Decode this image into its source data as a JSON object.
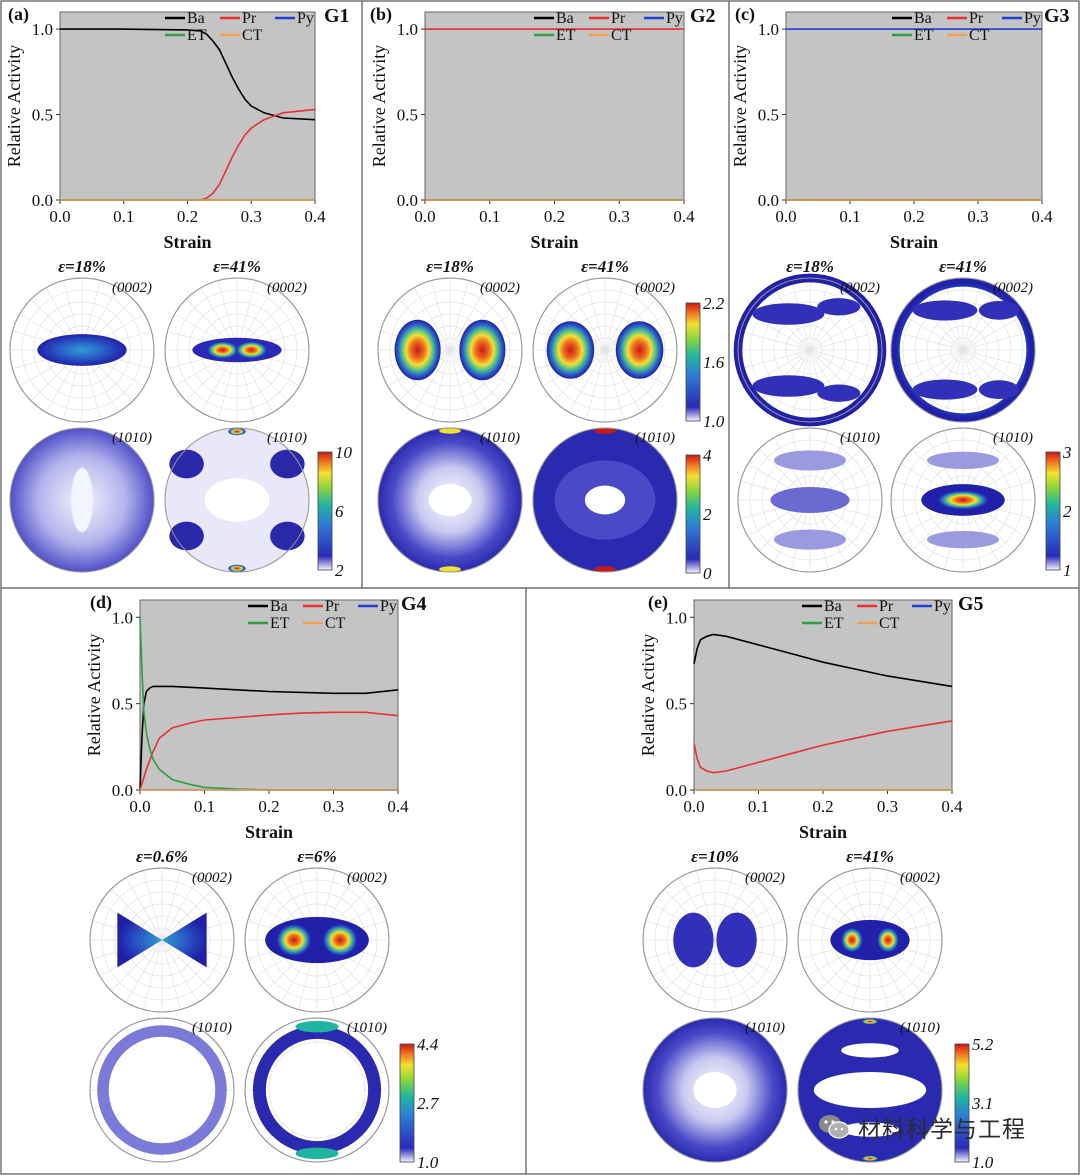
{
  "chart_data": [
    {
      "panel": "(a)",
      "grain": "G1",
      "type": "line",
      "xlabel": "Strain",
      "ylabel": "Relative Activity",
      "xlim": [
        0,
        0.4
      ],
      "ylim": [
        0,
        1.1
      ],
      "xticks": [
        "0.0",
        "0.1",
        "0.2",
        "0.3",
        "0.4"
      ],
      "yticks": [
        "0.0",
        "0.5",
        "1.0"
      ],
      "legend": [
        "Ba",
        "Pr",
        "Py",
        "ET",
        "CT"
      ],
      "legend_position": "top-right",
      "series": [
        {
          "name": "Ba",
          "color": "#000000",
          "x": [
            0,
            0.1,
            0.2,
            0.22,
            0.23,
            0.24,
            0.25,
            0.26,
            0.27,
            0.28,
            0.29,
            0.3,
            0.32,
            0.35,
            0.4
          ],
          "y": [
            1,
            1,
            0.995,
            0.99,
            0.97,
            0.93,
            0.88,
            0.8,
            0.72,
            0.65,
            0.59,
            0.55,
            0.51,
            0.48,
            0.47
          ]
        },
        {
          "name": "Pr",
          "color": "#e83030",
          "x": [
            0,
            0.1,
            0.2,
            0.22,
            0.23,
            0.24,
            0.25,
            0.26,
            0.27,
            0.28,
            0.29,
            0.3,
            0.32,
            0.35,
            0.4
          ],
          "y": [
            0,
            0,
            0,
            0,
            0.01,
            0.04,
            0.09,
            0.17,
            0.25,
            0.32,
            0.38,
            0.42,
            0.47,
            0.51,
            0.53
          ]
        },
        {
          "name": "Py",
          "color": "#1f3fd6",
          "x": [
            0,
            0.4
          ],
          "y": [
            0,
            0
          ]
        },
        {
          "name": "ET",
          "color": "#2e9e3e",
          "x": [
            0,
            0.4
          ],
          "y": [
            0,
            0
          ]
        },
        {
          "name": "CT",
          "color": "#f0a050",
          "x": [
            0,
            0.4
          ],
          "y": [
            0,
            0
          ]
        }
      ],
      "pole_figures": {
        "strains": [
          "ε=18%",
          "ε=41%"
        ],
        "basal": "(0002)",
        "prism": "(1010)"
      },
      "colorbar": {
        "ticks": [
          "10",
          "6",
          "2"
        ]
      }
    },
    {
      "panel": "(b)",
      "grain": "G2",
      "type": "line",
      "xlabel": "Strain",
      "ylabel": "Relative Activity",
      "xlim": [
        0,
        0.4
      ],
      "ylim": [
        0,
        1.1
      ],
      "xticks": [
        "0.0",
        "0.1",
        "0.2",
        "0.3",
        "0.4"
      ],
      "yticks": [
        "0.0",
        "0.5",
        "1.0"
      ],
      "legend": [
        "Ba",
        "Pr",
        "Py",
        "ET",
        "CT"
      ],
      "legend_position": "top-right",
      "series": [
        {
          "name": "Pr",
          "color": "#e83030",
          "x": [
            0,
            0.4
          ],
          "y": [
            1,
            1
          ]
        },
        {
          "name": "Ba",
          "color": "#000000",
          "x": [
            0,
            0.4
          ],
          "y": [
            0,
            0
          ]
        },
        {
          "name": "Py",
          "color": "#1f3fd6",
          "x": [
            0,
            0.4
          ],
          "y": [
            0,
            0
          ]
        },
        {
          "name": "ET",
          "color": "#2e9e3e",
          "x": [
            0,
            0.4
          ],
          "y": [
            0,
            0
          ]
        },
        {
          "name": "CT",
          "color": "#f0a050",
          "x": [
            0,
            0.4
          ],
          "y": [
            0,
            0
          ]
        }
      ],
      "pole_figures": {
        "strains": [
          "ε=18%",
          "ε=41%"
        ],
        "basal": "(0002)",
        "prism": "(1010)"
      },
      "colorbar_top": {
        "ticks": [
          "2.2",
          "1.6",
          "1.0"
        ]
      },
      "colorbar": {
        "ticks": [
          "4",
          "2",
          "0"
        ]
      }
    },
    {
      "panel": "(c)",
      "grain": "G3",
      "type": "line",
      "xlabel": "Strain",
      "ylabel": "Relative Activity",
      "xlim": [
        0,
        0.4
      ],
      "ylim": [
        0,
        1.1
      ],
      "xticks": [
        "0.0",
        "0.1",
        "0.2",
        "0.3",
        "0.4"
      ],
      "yticks": [
        "0.0",
        "0.5",
        "1.0"
      ],
      "legend": [
        "Ba",
        "Pr",
        "Py",
        "ET",
        "CT"
      ],
      "legend_position": "top-right",
      "series": [
        {
          "name": "Py",
          "color": "#1f3fd6",
          "x": [
            0,
            0.4
          ],
          "y": [
            1,
            1
          ]
        },
        {
          "name": "Ba",
          "color": "#000000",
          "x": [
            0,
            0.4
          ],
          "y": [
            0,
            0
          ]
        },
        {
          "name": "Pr",
          "color": "#e83030",
          "x": [
            0,
            0.4
          ],
          "y": [
            0,
            0
          ]
        },
        {
          "name": "ET",
          "color": "#2e9e3e",
          "x": [
            0,
            0.4
          ],
          "y": [
            0,
            0
          ]
        },
        {
          "name": "CT",
          "color": "#f0a050",
          "x": [
            0,
            0.4
          ],
          "y": [
            0,
            0
          ]
        }
      ],
      "pole_figures": {
        "strains": [
          "ε=18%",
          "ε=41%"
        ],
        "basal": "(0002)",
        "prism": "(1010)"
      },
      "colorbar": {
        "ticks": [
          "3",
          "2",
          "1"
        ]
      }
    },
    {
      "panel": "(d)",
      "grain": "G4",
      "type": "line",
      "xlabel": "Strain",
      "ylabel": "Relative Activity",
      "xlim": [
        0,
        0.4
      ],
      "ylim": [
        0,
        1.1
      ],
      "xticks": [
        "0.0",
        "0.1",
        "0.2",
        "0.3",
        "0.4"
      ],
      "yticks": [
        "0.0",
        "0.5",
        "1.0"
      ],
      "legend": [
        "Ba",
        "Pr",
        "Py",
        "ET",
        "CT"
      ],
      "legend_position": "top-right",
      "series": [
        {
          "name": "Ba",
          "color": "#000000",
          "x": [
            0,
            0.003,
            0.006,
            0.01,
            0.015,
            0.02,
            0.05,
            0.1,
            0.2,
            0.3,
            0.35,
            0.4
          ],
          "y": [
            0,
            0.3,
            0.5,
            0.57,
            0.59,
            0.6,
            0.6,
            0.59,
            0.57,
            0.56,
            0.56,
            0.58
          ]
        },
        {
          "name": "Pr",
          "color": "#e83030",
          "x": [
            0,
            0.01,
            0.02,
            0.03,
            0.05,
            0.08,
            0.1,
            0.15,
            0.2,
            0.25,
            0.3,
            0.35,
            0.4
          ],
          "y": [
            0,
            0.12,
            0.22,
            0.3,
            0.36,
            0.39,
            0.405,
            0.42,
            0.435,
            0.445,
            0.45,
            0.45,
            0.43
          ]
        },
        {
          "name": "ET",
          "color": "#2e9e3e",
          "x": [
            0,
            0.003,
            0.006,
            0.01,
            0.015,
            0.02,
            0.03,
            0.05,
            0.08,
            0.1,
            0.15,
            0.2,
            0.4
          ],
          "y": [
            1,
            0.7,
            0.45,
            0.33,
            0.24,
            0.18,
            0.12,
            0.06,
            0.03,
            0.015,
            0.005,
            0,
            0
          ]
        },
        {
          "name": "Py",
          "color": "#1f3fd6",
          "x": [
            0,
            0.4
          ],
          "y": [
            0,
            0
          ]
        },
        {
          "name": "CT",
          "color": "#f0a050",
          "x": [
            0,
            0.4
          ],
          "y": [
            0,
            0
          ]
        }
      ],
      "pole_figures": {
        "strains": [
          "ε=0.6%",
          "ε=6%"
        ],
        "basal": "(0002)",
        "prism": "(1010)"
      },
      "colorbar": {
        "ticks": [
          "4.4",
          "2.7",
          "1.0"
        ]
      }
    },
    {
      "panel": "(e)",
      "grain": "G5",
      "type": "line",
      "xlabel": "Strain",
      "ylabel": "Relative Activity",
      "xlim": [
        0,
        0.4
      ],
      "ylim": [
        0,
        1.1
      ],
      "xticks": [
        "0.0",
        "0.1",
        "0.2",
        "0.3",
        "0.4"
      ],
      "yticks": [
        "0.0",
        "0.5",
        "1.0"
      ],
      "legend": [
        "Ba",
        "Pr",
        "Py",
        "ET",
        "CT"
      ],
      "legend_position": "top-right",
      "series": [
        {
          "name": "Ba",
          "color": "#000000",
          "x": [
            0,
            0.005,
            0.01,
            0.02,
            0.03,
            0.05,
            0.1,
            0.15,
            0.2,
            0.25,
            0.3,
            0.35,
            0.4
          ],
          "y": [
            0.73,
            0.82,
            0.87,
            0.89,
            0.9,
            0.89,
            0.84,
            0.79,
            0.74,
            0.7,
            0.66,
            0.63,
            0.6
          ]
        },
        {
          "name": "Pr",
          "color": "#e83030",
          "x": [
            0,
            0.005,
            0.01,
            0.02,
            0.03,
            0.05,
            0.1,
            0.15,
            0.2,
            0.25,
            0.3,
            0.35,
            0.4
          ],
          "y": [
            0.27,
            0.18,
            0.13,
            0.11,
            0.1,
            0.11,
            0.16,
            0.21,
            0.26,
            0.3,
            0.34,
            0.37,
            0.4
          ]
        },
        {
          "name": "Py",
          "color": "#1f3fd6",
          "x": [
            0,
            0.4
          ],
          "y": [
            0,
            0
          ]
        },
        {
          "name": "ET",
          "color": "#2e9e3e",
          "x": [
            0,
            0.4
          ],
          "y": [
            0,
            0
          ]
        },
        {
          "name": "CT",
          "color": "#f0a050",
          "x": [
            0,
            0.4
          ],
          "y": [
            0,
            0
          ]
        }
      ],
      "pole_figures": {
        "strains": [
          "ε=10%",
          "ε=41%"
        ],
        "basal": "(0002)",
        "prism": "(1010)"
      },
      "colorbar": {
        "ticks": [
          "5.2",
          "3.1",
          "1.0"
        ]
      }
    }
  ],
  "watermark": {
    "text": "材料科学与工程",
    "icon": "wechat-icon"
  }
}
